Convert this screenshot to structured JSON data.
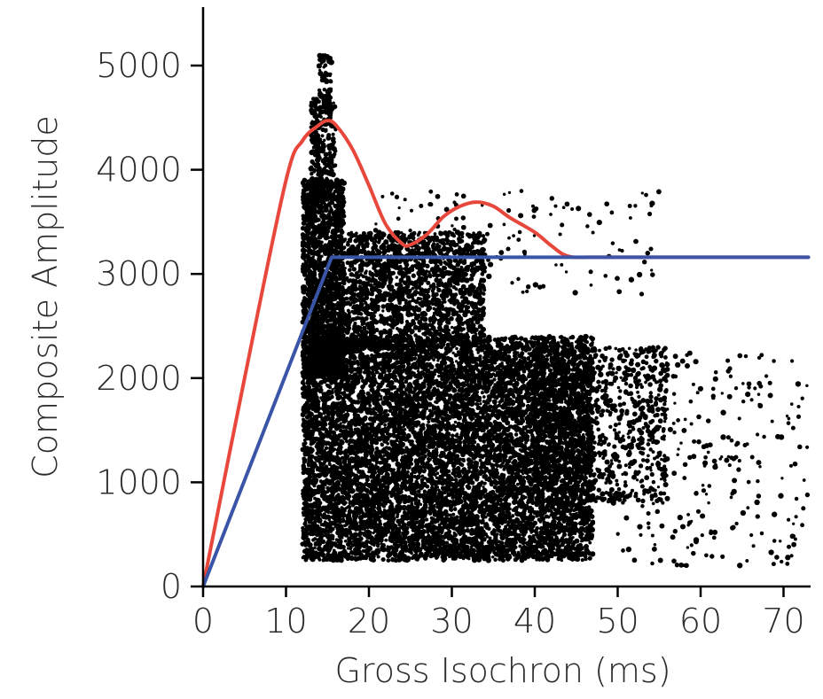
{
  "chart_data": {
    "type": "scatter",
    "title": "",
    "xlabel": "Gross Isochron (ms)",
    "ylabel": "Composite Amplitude",
    "xlim": [
      0,
      73
    ],
    "ylim": [
      0,
      5500
    ],
    "xticks": [
      0,
      10,
      20,
      30,
      40,
      50,
      60,
      70
    ],
    "yticks": [
      0,
      1000,
      2000,
      3000,
      4000,
      5000
    ],
    "grid": false,
    "colors": {
      "red_curve": "#e8473c",
      "blue_curve": "#3a55a8",
      "points": "#000000"
    },
    "series": [
      {
        "kind": "line",
        "color": "#e8473c",
        "x": [
          0,
          5,
          10,
          12,
          14,
          15,
          16,
          18,
          20,
          22,
          24,
          25,
          27,
          29,
          31,
          33,
          35,
          37,
          40,
          42,
          44,
          47,
          55,
          65,
          73
        ],
        "y": [
          0,
          2000,
          3900,
          4280,
          4430,
          4470,
          4430,
          4200,
          3850,
          3480,
          3290,
          3280,
          3380,
          3550,
          3650,
          3690,
          3650,
          3540,
          3400,
          3270,
          3170,
          3160,
          3160,
          3160,
          3160
        ]
      },
      {
        "kind": "line",
        "color": "#3a55a8",
        "x": [
          0,
          15.5,
          73
        ],
        "y": [
          0,
          3160,
          3160
        ]
      }
    ],
    "scatter_regions": [
      {
        "xmin": 12,
        "xmax": 47,
        "ymin": 250,
        "ymax": 2400,
        "count": 9000
      },
      {
        "xmin": 12,
        "xmax": 17,
        "ymin": 2000,
        "ymax": 3900,
        "count": 1700
      },
      {
        "xmin": 13,
        "xmax": 16,
        "ymin": 3700,
        "ymax": 4700,
        "count": 300
      },
      {
        "xmin": 14,
        "xmax": 15.5,
        "ymin": 4700,
        "ymax": 5100,
        "count": 60
      },
      {
        "xmin": 17,
        "xmax": 34,
        "ymin": 2300,
        "ymax": 3400,
        "count": 1700
      },
      {
        "xmin": 40,
        "xmax": 56,
        "ymin": 800,
        "ymax": 2300,
        "count": 900
      },
      {
        "xmin": 50,
        "xmax": 73,
        "ymin": 200,
        "ymax": 2300,
        "count": 280
      },
      {
        "xmin": 20,
        "xmax": 55,
        "ymin": 2800,
        "ymax": 3800,
        "count": 150
      }
    ]
  }
}
